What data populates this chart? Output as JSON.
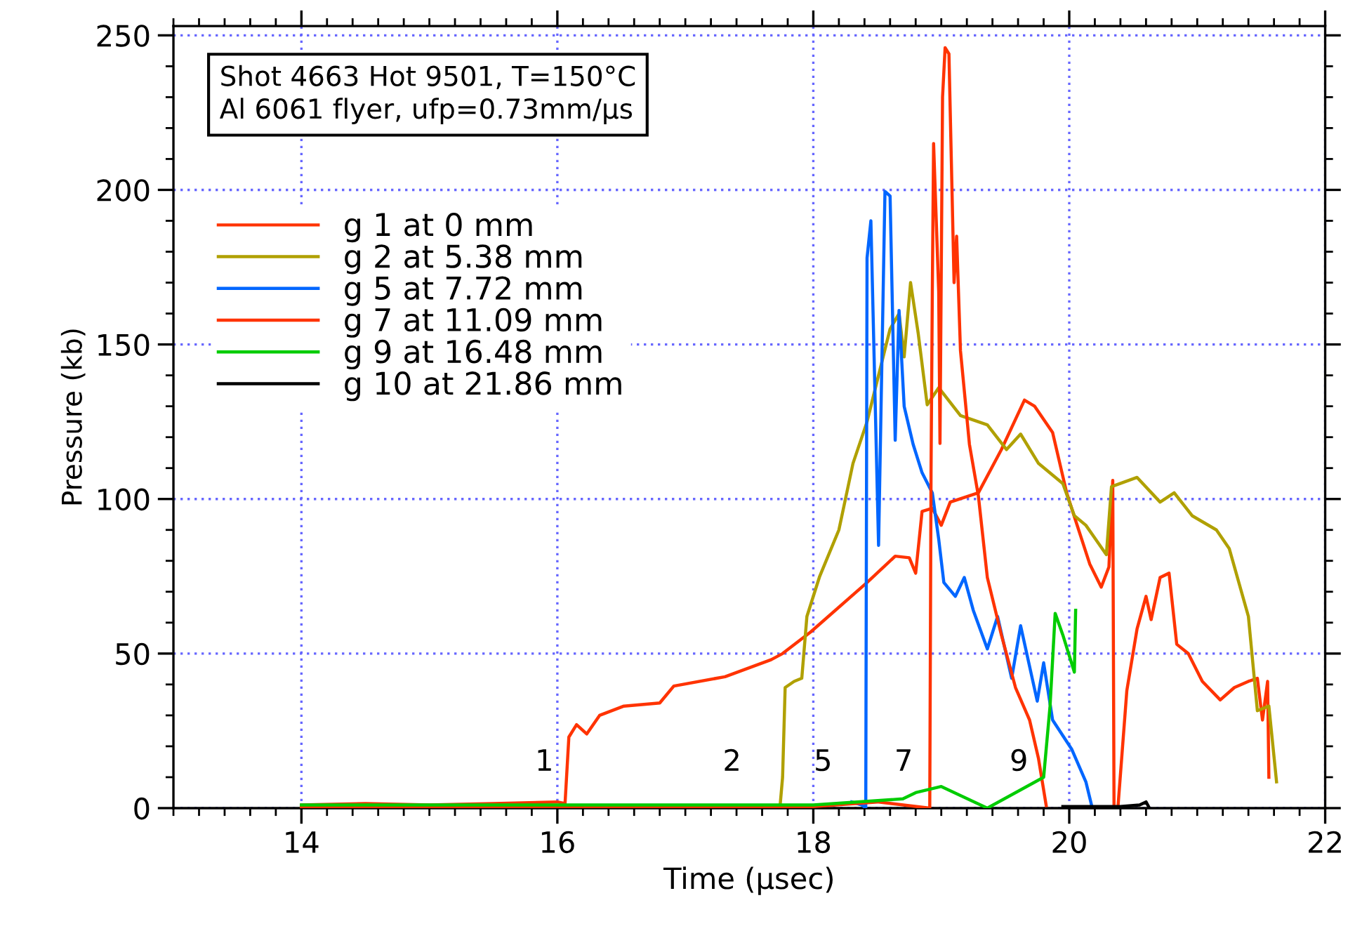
{
  "chart_data": {
    "type": "line",
    "xlabel": "Time (μsec)",
    "ylabel": "Pressure (kb)",
    "xlim": [
      13,
      22
    ],
    "xticks": [
      14,
      16,
      18,
      20,
      22
    ],
    "ylim": [
      0,
      253
    ],
    "yticks": [
      0,
      50,
      100,
      150,
      200,
      250
    ],
    "grid": true,
    "legend": "top left",
    "marker": "none",
    "line_style": "solid",
    "annotations": [
      "Shot 4663 Hot 9501, T=150°C\nAl 6061 flyer, ufp=0.73mm/μs",
      "1",
      "2",
      "5",
      "7",
      "9"
    ],
    "series": [
      {
        "name": "g 1 at 0 mm",
        "color": "#ff3300",
        "x": [
          14,
          14.5,
          15,
          15.5,
          16,
          16.06,
          16.09,
          16.15,
          16.23,
          16.33,
          16.52,
          16.8,
          16.91,
          17.31,
          17.67,
          17.76,
          17.98,
          18.42,
          18.64,
          18.75,
          18.8,
          18.85,
          18.93,
          19.0,
          19.07,
          19.29,
          19.47,
          19.65,
          19.73,
          19.87,
          19.98,
          20.05,
          20.16,
          20.25,
          20.31,
          20.34,
          20.35,
          20.38,
          20.45,
          20.53,
          20.6,
          20.64,
          20.71,
          20.78,
          20.84,
          20.93,
          21.04,
          21.18,
          21.29,
          21.4,
          21.47,
          21.51,
          21.55,
          21.56
        ],
        "values": [
          1,
          1.5,
          1,
          1.5,
          2,
          1.5,
          23,
          27,
          24,
          30,
          33,
          34,
          39.5,
          42.5,
          48,
          50,
          57,
          73,
          81.5,
          81,
          76,
          96,
          97,
          91.5,
          99,
          102,
          116,
          132,
          130,
          121.5,
          102,
          93,
          79,
          71.5,
          78,
          106,
          0,
          0,
          38,
          58,
          68.5,
          61,
          74.6,
          76,
          53,
          50,
          41,
          35,
          39,
          41,
          42,
          28.5,
          41,
          10
        ]
      },
      {
        "name": "g 2 at 5.38 mm",
        "color": "#b0a000",
        "x": [
          17.74,
          17.76,
          17.78,
          17.85,
          17.91,
          17.95,
          18.05,
          18.2,
          18.31,
          18.42,
          18.49,
          18.6,
          18.67,
          18.71,
          18.76,
          18.82,
          18.89,
          18.98,
          19.15,
          19.36,
          19.51,
          19.62,
          19.76,
          19.95,
          20.04,
          20.13,
          20.29,
          20.33,
          20.53,
          20.71,
          20.82,
          20.96,
          21.15,
          21.25,
          21.4,
          21.47,
          21.56,
          21.62
        ],
        "values": [
          0.5,
          10,
          39,
          41,
          42,
          62,
          75,
          90,
          111.5,
          125,
          136.7,
          155,
          160,
          146,
          170,
          153.5,
          130.5,
          136,
          127,
          124,
          116,
          121,
          111.5,
          105,
          94.6,
          91.5,
          82,
          104,
          107,
          99,
          102,
          94.6,
          90,
          84,
          62,
          31.5,
          33,
          8.5
        ]
      },
      {
        "name": "g 5 at 7.72 mm",
        "color": "#0066ff",
        "x": [
          18.3,
          18.38,
          18.41,
          18.42,
          18.45,
          18.51,
          18.56,
          18.6,
          18.64,
          18.67,
          18.71,
          18.78,
          18.85,
          18.93,
          18.98,
          19.02,
          19.11,
          19.18,
          19.25,
          19.36,
          19.44,
          19.55,
          19.62,
          19.75,
          19.8,
          19.87,
          20.02,
          20.13,
          20.18
        ],
        "values": [
          2,
          1,
          0,
          178,
          190,
          85,
          199.5,
          198,
          119,
          161,
          130,
          117.7,
          108.5,
          102,
          87,
          73,
          68.5,
          74.6,
          64,
          51.5,
          62,
          42,
          59,
          34.6,
          47,
          28.5,
          19,
          8.5,
          0
        ]
      },
      {
        "name": "g 7 at 11.09 mm",
        "color": "#ff3300",
        "x": [
          14,
          15,
          16,
          17,
          18,
          18.5,
          18.91,
          18.92,
          18.93,
          18.94,
          18.98,
          18.99,
          19.01,
          19.03,
          19.06,
          19.08,
          19.1,
          19.12,
          19.15,
          19.22,
          19.29,
          19.36,
          19.47,
          19.58,
          19.69,
          19.76,
          19.82
        ],
        "values": [
          0.5,
          0.5,
          0.5,
          0.5,
          0.5,
          2,
          0,
          108,
          167,
          215,
          167,
          118,
          230,
          246,
          244,
          207,
          170,
          185,
          148,
          117.7,
          101,
          74.6,
          56,
          39,
          28.5,
          16,
          0.8
        ]
      },
      {
        "name": "g 9 at 16.48 mm",
        "color": "#00cc00",
        "x": [
          14,
          15,
          16,
          17,
          18,
          18.7,
          18.8,
          19.0,
          19.36,
          19.8,
          19.85,
          19.89,
          19.95,
          20.04,
          20.05
        ],
        "values": [
          1,
          1,
          1,
          1,
          1,
          3,
          5,
          7,
          0,
          10,
          33,
          63,
          56,
          44,
          64
        ]
      },
      {
        "name": "g 10 at 21.86 mm",
        "color": "#000000",
        "x": [
          19.95,
          20.2,
          20.4,
          20.55,
          20.6,
          20.62
        ],
        "values": [
          0.5,
          0.5,
          0.5,
          1,
          2,
          0.5
        ]
      }
    ]
  }
}
